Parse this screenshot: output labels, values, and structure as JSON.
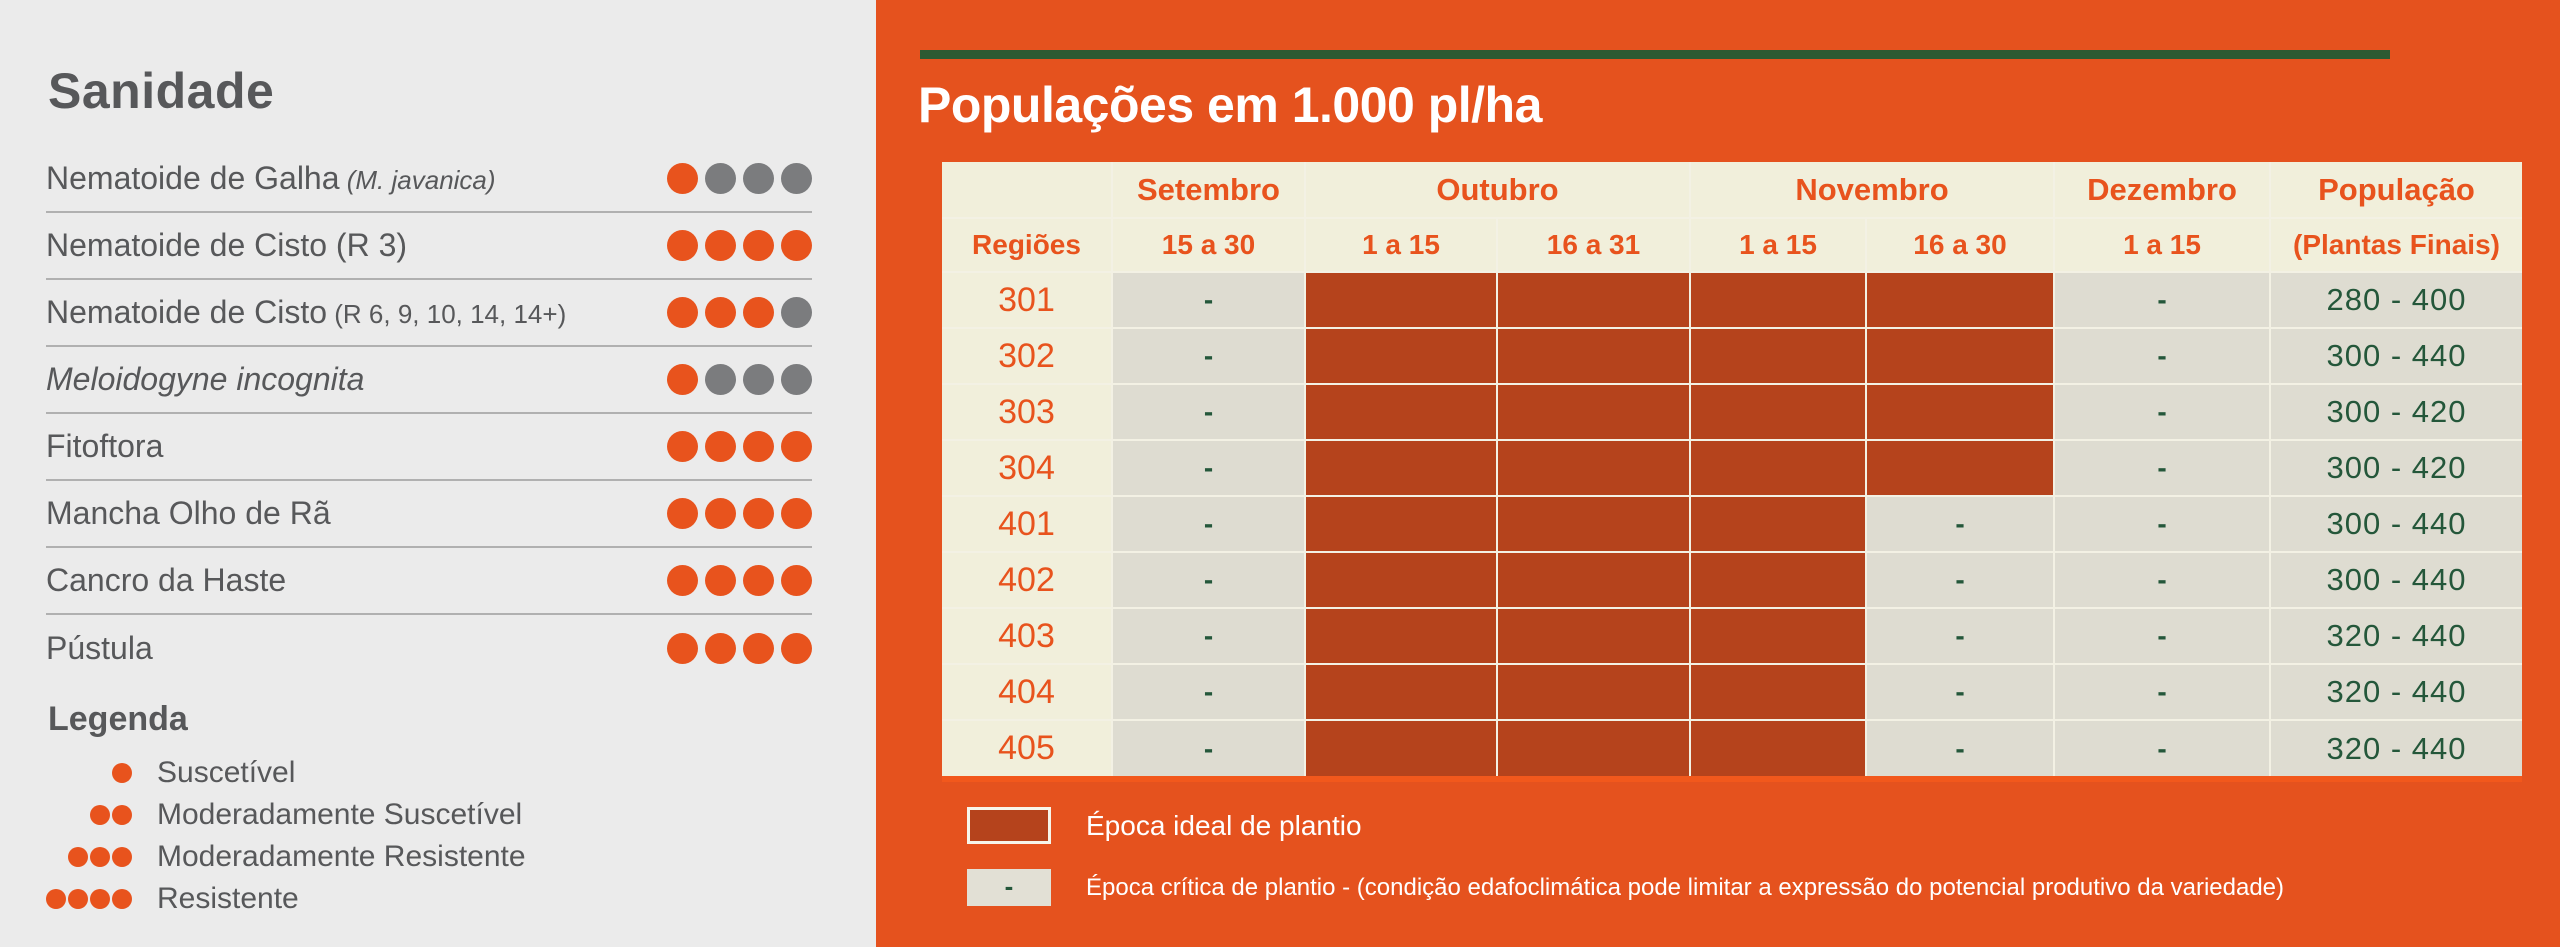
{
  "colors": {
    "panel_left_bg": "#ebebeb",
    "panel_right_bg": "#e5521e",
    "accent_orange": "#e8531d",
    "ideal_fill_red": "#b5431c",
    "header_cream": "#f1efdb",
    "cell_gray": "#dedcd1",
    "text_dark_gray": "#57585a",
    "dot_gray": "#7b7c7e",
    "text_dark_green": "#24573a",
    "green_bar": "#2d5a32",
    "white": "#ffffff"
  },
  "sanidade": {
    "title": "Sanidade",
    "rating_max": 4,
    "diseases": [
      {
        "label": "Nematoide de Galha",
        "suffix": "(M. javanica)",
        "italic": false,
        "suffix_italic": true,
        "rating": 1
      },
      {
        "label": "Nematoide de Cisto (R 3)",
        "suffix": "",
        "italic": false,
        "suffix_italic": false,
        "rating": 4
      },
      {
        "label": "Nematoide de Cisto",
        "suffix": "(R 6, 9, 10, 14, 14+)",
        "italic": false,
        "suffix_italic": false,
        "rating": 3
      },
      {
        "label": "Meloidogyne incognita",
        "suffix": "",
        "italic": true,
        "suffix_italic": false,
        "rating": 1
      },
      {
        "label": "Fitoftora",
        "suffix": "",
        "italic": false,
        "suffix_italic": false,
        "rating": 4
      },
      {
        "label": "Mancha Olho de Rã",
        "suffix": "",
        "italic": false,
        "suffix_italic": false,
        "rating": 4
      },
      {
        "label": "Cancro da Haste",
        "suffix": "",
        "italic": false,
        "suffix_italic": false,
        "rating": 4
      },
      {
        "label": "Pústula",
        "suffix": "",
        "italic": false,
        "suffix_italic": false,
        "rating": 4
      }
    ],
    "legend_title": "Legenda",
    "legend": [
      {
        "dots": 1,
        "label": "Suscetível"
      },
      {
        "dots": 2,
        "label": "Moderadamente Suscetível"
      },
      {
        "dots": 3,
        "label": "Moderadamente Resistente"
      },
      {
        "dots": 4,
        "label": "Resistente"
      }
    ]
  },
  "populacoes": {
    "title": "Populações em 1.000 pl/ha",
    "table": {
      "month_headers": [
        {
          "label": "",
          "span": 1
        },
        {
          "label": "Setembro",
          "span": 1
        },
        {
          "label": "Outubro",
          "span": 2
        },
        {
          "label": "Novembro",
          "span": 2
        },
        {
          "label": "Dezembro",
          "span": 1
        },
        {
          "label": "População",
          "span": 1
        }
      ],
      "sub_headers": [
        "Regiões",
        "15 a 30",
        "1 a 15",
        "16 a 31",
        "1 a 15",
        "16 a 30",
        "1 a 15",
        "(Plantas Finais)"
      ],
      "rows": [
        {
          "region": "301",
          "periods": [
            "-",
            "fill",
            "fill",
            "fill",
            "fill",
            "-"
          ],
          "population": "280 - 400"
        },
        {
          "region": "302",
          "periods": [
            "-",
            "fill",
            "fill",
            "fill",
            "fill",
            "-"
          ],
          "population": "300 - 440"
        },
        {
          "region": "303",
          "periods": [
            "-",
            "fill",
            "fill",
            "fill",
            "fill",
            "-"
          ],
          "population": "300 - 420"
        },
        {
          "region": "304",
          "periods": [
            "-",
            "fill",
            "fill",
            "fill",
            "fill",
            "-"
          ],
          "population": "300 - 420"
        },
        {
          "region": "401",
          "periods": [
            "-",
            "fill",
            "fill",
            "fill",
            "-",
            "-"
          ],
          "population": "300 - 440"
        },
        {
          "region": "402",
          "periods": [
            "-",
            "fill",
            "fill",
            "fill",
            "-",
            "-"
          ],
          "population": "300 - 440"
        },
        {
          "region": "403",
          "periods": [
            "-",
            "fill",
            "fill",
            "fill",
            "-",
            "-"
          ],
          "population": "320 - 440"
        },
        {
          "region": "404",
          "periods": [
            "-",
            "fill",
            "fill",
            "fill",
            "-",
            "-"
          ],
          "population": "320 - 440"
        },
        {
          "region": "405",
          "periods": [
            "-",
            "fill",
            "fill",
            "fill",
            "-",
            "-"
          ],
          "population": "320 - 440"
        }
      ]
    },
    "legend": [
      {
        "type": "fill",
        "symbol": "",
        "label": "Época ideal de plantio"
      },
      {
        "type": "dash",
        "symbol": "-",
        "label": "Época crítica de plantio - (condição edafoclimática pode limitar a expressão do potencial produtivo da variedade)"
      }
    ]
  }
}
